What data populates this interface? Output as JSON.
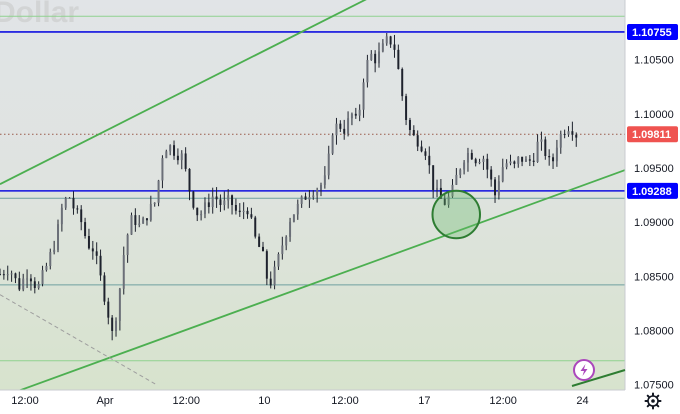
{
  "chart_data": {
    "type": "candlestick",
    "symbol_watermark": "Dollar",
    "ylim": [
      1.0745,
      1.1105
    ],
    "y_ticks": [
      {
        "value": 1.075,
        "label": "1.07500"
      },
      {
        "value": 1.08,
        "label": "1.08000"
      },
      {
        "value": 1.085,
        "label": "1.08500"
      },
      {
        "value": 1.09,
        "label": "1.09000"
      },
      {
        "value": 1.095,
        "label": "1.09500"
      },
      {
        "value": 1.1,
        "label": "1.10000"
      },
      {
        "value": 1.105,
        "label": "1.10500"
      }
    ],
    "x_ticks": [
      {
        "label": "12:00",
        "frac": 0.04
      },
      {
        "label": "Apr",
        "frac": 0.168
      },
      {
        "label": "12:00",
        "frac": 0.298
      },
      {
        "label": "10",
        "frac": 0.423
      },
      {
        "label": "12:00",
        "frac": 0.552
      },
      {
        "label": "17",
        "frac": 0.679
      },
      {
        "label": "12:00",
        "frac": 0.805
      },
      {
        "label": "24",
        "frac": 0.932
      }
    ],
    "price_tags": [
      {
        "value": 1.10755,
        "label": "1.10755",
        "color": "#0000ff"
      },
      {
        "value": 1.09811,
        "label": "1.09811",
        "color": "#ef5350"
      },
      {
        "value": 1.09288,
        "label": "1.09288",
        "color": "#0000ff"
      }
    ],
    "horizontal_levels": [
      {
        "value": 1.10755,
        "color": "#1010e0",
        "style": "solid",
        "width": 1.6
      },
      {
        "value": 1.09288,
        "color": "#1010e0",
        "style": "solid",
        "width": 1.6
      },
      {
        "value": 1.09811,
        "color": "#9a5a4a",
        "style": "dotted",
        "width": 1
      },
      {
        "value": 1.109,
        "color": "#8fd18f",
        "style": "solid",
        "width": 1
      },
      {
        "value": 1.0922,
        "color": "#6fa0a0",
        "style": "solid",
        "width": 1
      },
      {
        "value": 1.0842,
        "color": "#6fa0a0",
        "style": "solid",
        "width": 1
      },
      {
        "value": 1.0772,
        "color": "#8fd18f",
        "style": "solid",
        "width": 1
      }
    ],
    "trend_lines": [
      {
        "x1": 0.0,
        "y1": 1.0935,
        "x2": 0.618,
        "y2": 1.1115,
        "color": "#4caf50"
      },
      {
        "x1": 0.0,
        "y1": 1.0738,
        "x2": 1.0,
        "y2": 1.0948,
        "color": "#4caf50"
      }
    ],
    "dashed_line": {
      "x1": 0.0,
      "y1": 1.0833,
      "x2": 0.25,
      "y2": 1.075,
      "color": "#9e9e9e"
    },
    "highlight_circle": {
      "x": 0.73,
      "y": 1.0907,
      "r": 0.038,
      "color": "#2e7d32",
      "fill": "#66bb6a"
    },
    "close_series": [
      {
        "x": 0.0,
        "c": 1.0852
      },
      {
        "x": 0.015,
        "c": 1.0858
      },
      {
        "x": 0.03,
        "c": 1.084
      },
      {
        "x": 0.045,
        "c": 1.0855
      },
      {
        "x": 0.06,
        "c": 1.0838
      },
      {
        "x": 0.075,
        "c": 1.086
      },
      {
        "x": 0.09,
        "c": 1.0885
      },
      {
        "x": 0.1,
        "c": 1.0915
      },
      {
        "x": 0.11,
        "c": 1.0925
      },
      {
        "x": 0.12,
        "c": 1.091
      },
      {
        "x": 0.13,
        "c": 1.09
      },
      {
        "x": 0.14,
        "c": 1.088
      },
      {
        "x": 0.15,
        "c": 1.0875
      },
      {
        "x": 0.16,
        "c": 1.085
      },
      {
        "x": 0.17,
        "c": 1.0825
      },
      {
        "x": 0.18,
        "c": 1.0795
      },
      {
        "x": 0.19,
        "c": 1.083
      },
      {
        "x": 0.2,
        "c": 1.088
      },
      {
        "x": 0.212,
        "c": 1.0905
      },
      {
        "x": 0.225,
        "c": 1.0895
      },
      {
        "x": 0.238,
        "c": 1.091
      },
      {
        "x": 0.25,
        "c": 1.092
      },
      {
        "x": 0.258,
        "c": 1.096
      },
      {
        "x": 0.268,
        "c": 1.0972
      },
      {
        "x": 0.28,
        "c": 1.0965
      },
      {
        "x": 0.292,
        "c": 1.096
      },
      {
        "x": 0.305,
        "c": 1.0925
      },
      {
        "x": 0.318,
        "c": 1.0905
      },
      {
        "x": 0.33,
        "c": 1.0915
      },
      {
        "x": 0.342,
        "c": 1.0925
      },
      {
        "x": 0.355,
        "c": 1.0915
      },
      {
        "x": 0.368,
        "c": 1.092
      },
      {
        "x": 0.382,
        "c": 1.0905
      },
      {
        "x": 0.395,
        "c": 1.0915
      },
      {
        "x": 0.408,
        "c": 1.0885
      },
      {
        "x": 0.42,
        "c": 1.087
      },
      {
        "x": 0.43,
        "c": 1.084
      },
      {
        "x": 0.44,
        "c": 1.0855
      },
      {
        "x": 0.452,
        "c": 1.088
      },
      {
        "x": 0.465,
        "c": 1.0905
      },
      {
        "x": 0.478,
        "c": 1.0915
      },
      {
        "x": 0.49,
        "c": 1.0925
      },
      {
        "x": 0.5,
        "c": 1.093
      },
      {
        "x": 0.51,
        "c": 1.0932
      },
      {
        "x": 0.522,
        "c": 1.094
      },
      {
        "x": 0.532,
        "c": 1.0985
      },
      {
        "x": 0.542,
        "c": 1.099
      },
      {
        "x": 0.552,
        "c": 1.0985
      },
      {
        "x": 0.562,
        "c": 1.1
      },
      {
        "x": 0.572,
        "c": 1.099
      },
      {
        "x": 0.582,
        "c": 1.1035
      },
      {
        "x": 0.592,
        "c": 1.1055
      },
      {
        "x": 0.602,
        "c": 1.105
      },
      {
        "x": 0.612,
        "c": 1.106
      },
      {
        "x": 0.622,
        "c": 1.107
      },
      {
        "x": 0.632,
        "c": 1.106
      },
      {
        "x": 0.64,
        "c": 1.103
      },
      {
        "x": 0.648,
        "c": 1.1
      },
      {
        "x": 0.658,
        "c": 1.098
      },
      {
        "x": 0.67,
        "c": 1.0975
      },
      {
        "x": 0.682,
        "c": 1.0965
      },
      {
        "x": 0.692,
        "c": 1.0935
      },
      {
        "x": 0.702,
        "c": 1.0922
      },
      {
        "x": 0.712,
        "c": 1.0918
      },
      {
        "x": 0.722,
        "c": 1.0925
      },
      {
        "x": 0.732,
        "c": 1.0945
      },
      {
        "x": 0.742,
        "c": 1.096
      },
      {
        "x": 0.752,
        "c": 1.0965
      },
      {
        "x": 0.762,
        "c": 1.0958
      },
      {
        "x": 0.772,
        "c": 1.0962
      },
      {
        "x": 0.782,
        "c": 1.0945
      },
      {
        "x": 0.792,
        "c": 1.0925
      },
      {
        "x": 0.802,
        "c": 1.095
      },
      {
        "x": 0.812,
        "c": 1.0955
      },
      {
        "x": 0.822,
        "c": 1.095
      },
      {
        "x": 0.832,
        "c": 1.096
      },
      {
        "x": 0.842,
        "c": 1.0955
      },
      {
        "x": 0.852,
        "c": 1.0958
      },
      {
        "x": 0.862,
        "c": 1.0975
      },
      {
        "x": 0.872,
        "c": 1.0965
      },
      {
        "x": 0.882,
        "c": 1.095
      },
      {
        "x": 0.892,
        "c": 1.0975
      },
      {
        "x": 0.902,
        "c": 1.0985
      },
      {
        "x": 0.912,
        "c": 1.099
      },
      {
        "x": 0.922,
        "c": 1.0981
      }
    ]
  },
  "ui": {
    "gear_icon": "gear-icon",
    "lightning_icon": "lightning-icon",
    "accent_purple": "#ab47bc"
  }
}
